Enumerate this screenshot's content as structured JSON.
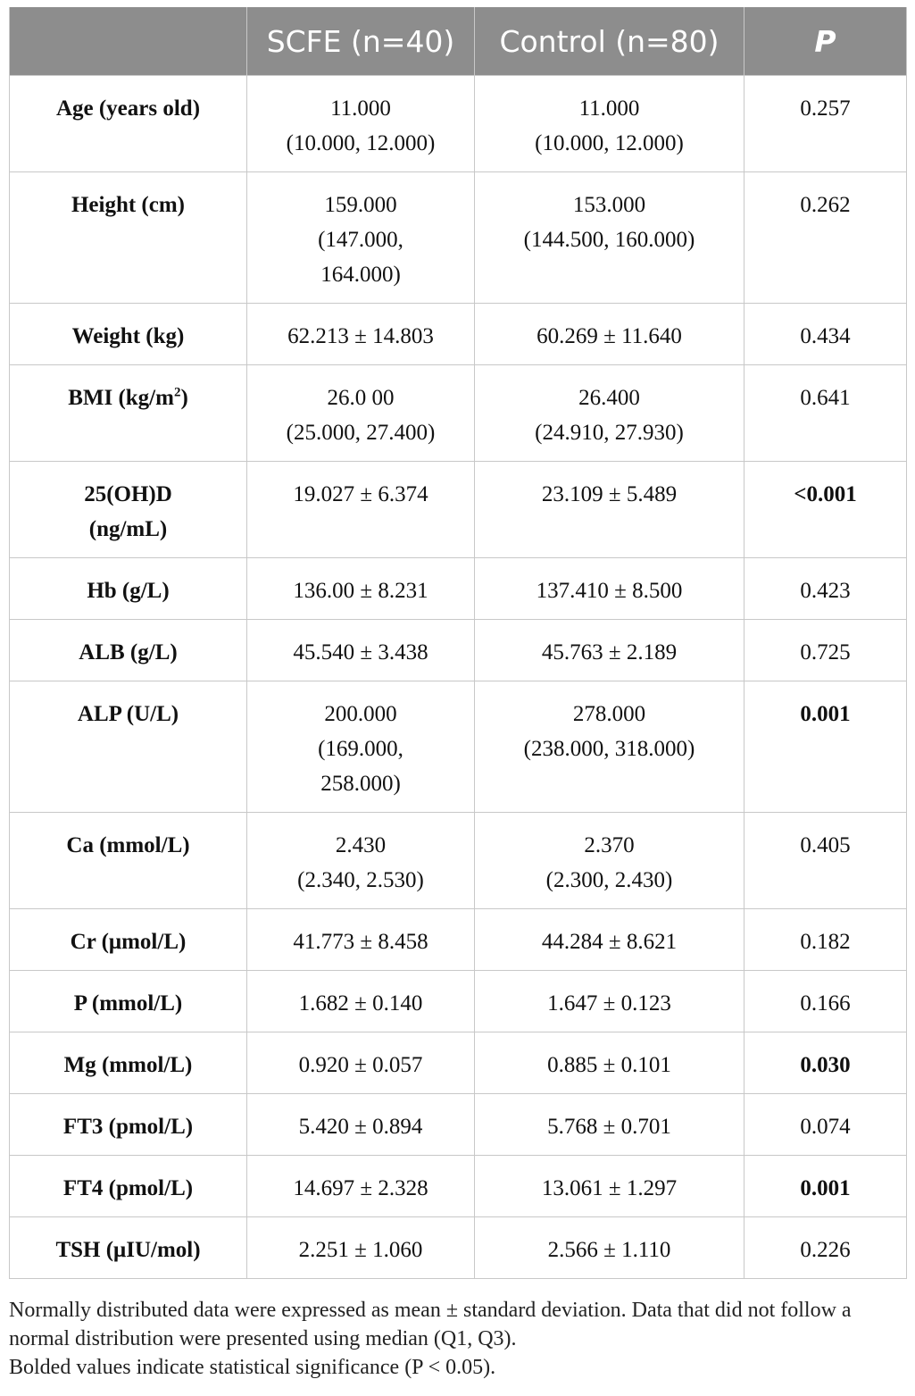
{
  "header": {
    "label_col": "",
    "scfe": "SCFE (n=40)",
    "control": "Control (n=80)",
    "p": "P"
  },
  "rows": [
    {
      "label_main": "Age (years old)",
      "label_sup": "",
      "label_tail": "",
      "scfe": "11.000\n(10.000, 12.000)",
      "control": "11.000\n(10.000, 12.000)",
      "p": "0.257",
      "significant": false
    },
    {
      "label_main": "Height (cm)",
      "label_sup": "",
      "label_tail": "",
      "scfe": "159.000\n(147.000,\n164.000)",
      "control": "153.000\n(144.500, 160.000)",
      "p": "0.262",
      "significant": false
    },
    {
      "label_main": "Weight (kg)",
      "label_sup": "",
      "label_tail": "",
      "scfe": "62.213 ± 14.803",
      "control": "60.269 ± 11.640",
      "p": "0.434",
      "significant": false
    },
    {
      "label_main": "BMI (kg/m",
      "label_sup": "2",
      "label_tail": ")",
      "scfe": "26.0 00\n(25.000, 27.400)",
      "control": "26.400\n(24.910, 27.930)",
      "p": "0.641",
      "significant": false
    },
    {
      "label_main": "25(OH)D\n(ng/mL)",
      "label_sup": "",
      "label_tail": "",
      "scfe": "19.027 ± 6.374",
      "control": "23.109 ± 5.489",
      "p": "<0.001",
      "significant": true
    },
    {
      "label_main": "Hb (g/L)",
      "label_sup": "",
      "label_tail": "",
      "scfe": "136.00 ± 8.231",
      "control": "137.410 ± 8.500",
      "p": "0.423",
      "significant": false
    },
    {
      "label_main": "ALB (g/L)",
      "label_sup": "",
      "label_tail": "",
      "scfe": "45.540 ± 3.438",
      "control": "45.763 ± 2.189",
      "p": "0.725",
      "significant": false
    },
    {
      "label_main": "ALP (U/L)",
      "label_sup": "",
      "label_tail": "",
      "scfe": "200.000\n(169.000,\n258.000)",
      "control": "278.000\n(238.000, 318.000)",
      "p": "0.001",
      "significant": true
    },
    {
      "label_main": "Ca (mmol/L)",
      "label_sup": "",
      "label_tail": "",
      "scfe": "2.430\n(2.340, 2.530)",
      "control": "2.370\n(2.300, 2.430)",
      "p": "0.405",
      "significant": false
    },
    {
      "label_main": "Cr (μmol/L)",
      "label_sup": "",
      "label_tail": "",
      "scfe": "41.773 ± 8.458",
      "control": "44.284 ± 8.621",
      "p": "0.182",
      "significant": false
    },
    {
      "label_main": "P (mmol/L)",
      "label_sup": "",
      "label_tail": "",
      "scfe": "1.682 ± 0.140",
      "control": "1.647 ± 0.123",
      "p": "0.166",
      "significant": false
    },
    {
      "label_main": "Mg (mmol/L)",
      "label_sup": "",
      "label_tail": "",
      "scfe": "0.920 ± 0.057",
      "control": "0.885 ± 0.101",
      "p": "0.030",
      "significant": true
    },
    {
      "label_main": "FT3 (pmol/L)",
      "label_sup": "",
      "label_tail": "",
      "scfe": "5.420 ± 0.894",
      "control": "5.768 ± 0.701",
      "p": "0.074",
      "significant": false
    },
    {
      "label_main": "FT4 (pmol/L)",
      "label_sup": "",
      "label_tail": "",
      "scfe": "14.697 ± 2.328",
      "control": "13.061 ± 1.297",
      "p": "0.001",
      "significant": true
    },
    {
      "label_main": "TSH (μIU/mol)",
      "label_sup": "",
      "label_tail": "",
      "scfe": "2.251 ± 1.060",
      "control": "2.566 ± 1.110",
      "p": "0.226",
      "significant": false
    }
  ],
  "notes": {
    "line1": "Normally distributed data were expressed as mean ± standard deviation. Data that did not follow a normal distribution were presented using median (Q1, Q3).",
    "line2": "Bolded values indicate statistical significance (P < 0.05)."
  }
}
